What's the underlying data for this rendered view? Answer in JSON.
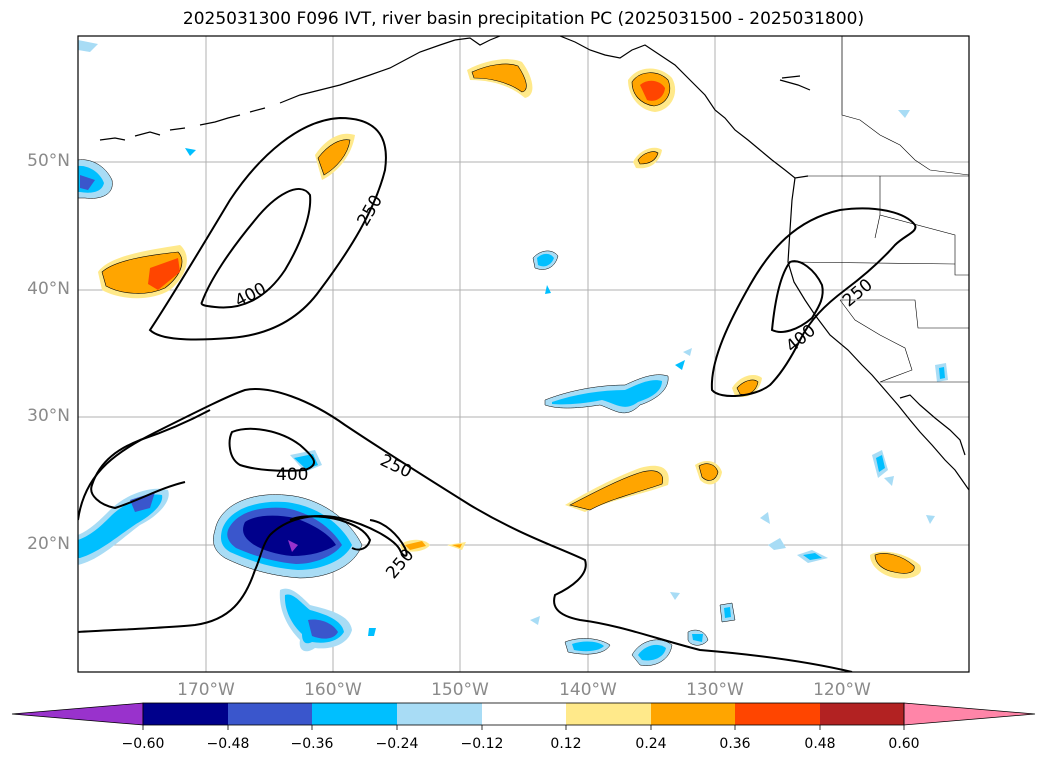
{
  "title": "2025031300 F096 IVT, river basin precipitation PC (2025031500 - 2025031800)",
  "latitude_ticks": [
    "50°N",
    "40°N",
    "30°N",
    "20°N"
  ],
  "longitude_ticks": [
    "170°W",
    "160°W",
    "150°W",
    "140°W",
    "130°W",
    "120°W"
  ],
  "contour_labels": [
    "250",
    "400",
    "400",
    "250",
    "250",
    "400",
    "250"
  ],
  "colorbar": {
    "tick_labels": [
      "−0.60",
      "−0.48",
      "−0.36",
      "−0.24",
      "−0.12",
      "0.12",
      "0.24",
      "0.36",
      "0.48",
      "0.60"
    ],
    "colors": [
      "#9932cc",
      "#00008b",
      "#3a56cc",
      "#00bfff",
      "#a8dcf5",
      "#ffffff",
      "#ffe98a",
      "#ffa500",
      "#ff4500",
      "#b22222",
      "#ff85a8"
    ]
  }
}
